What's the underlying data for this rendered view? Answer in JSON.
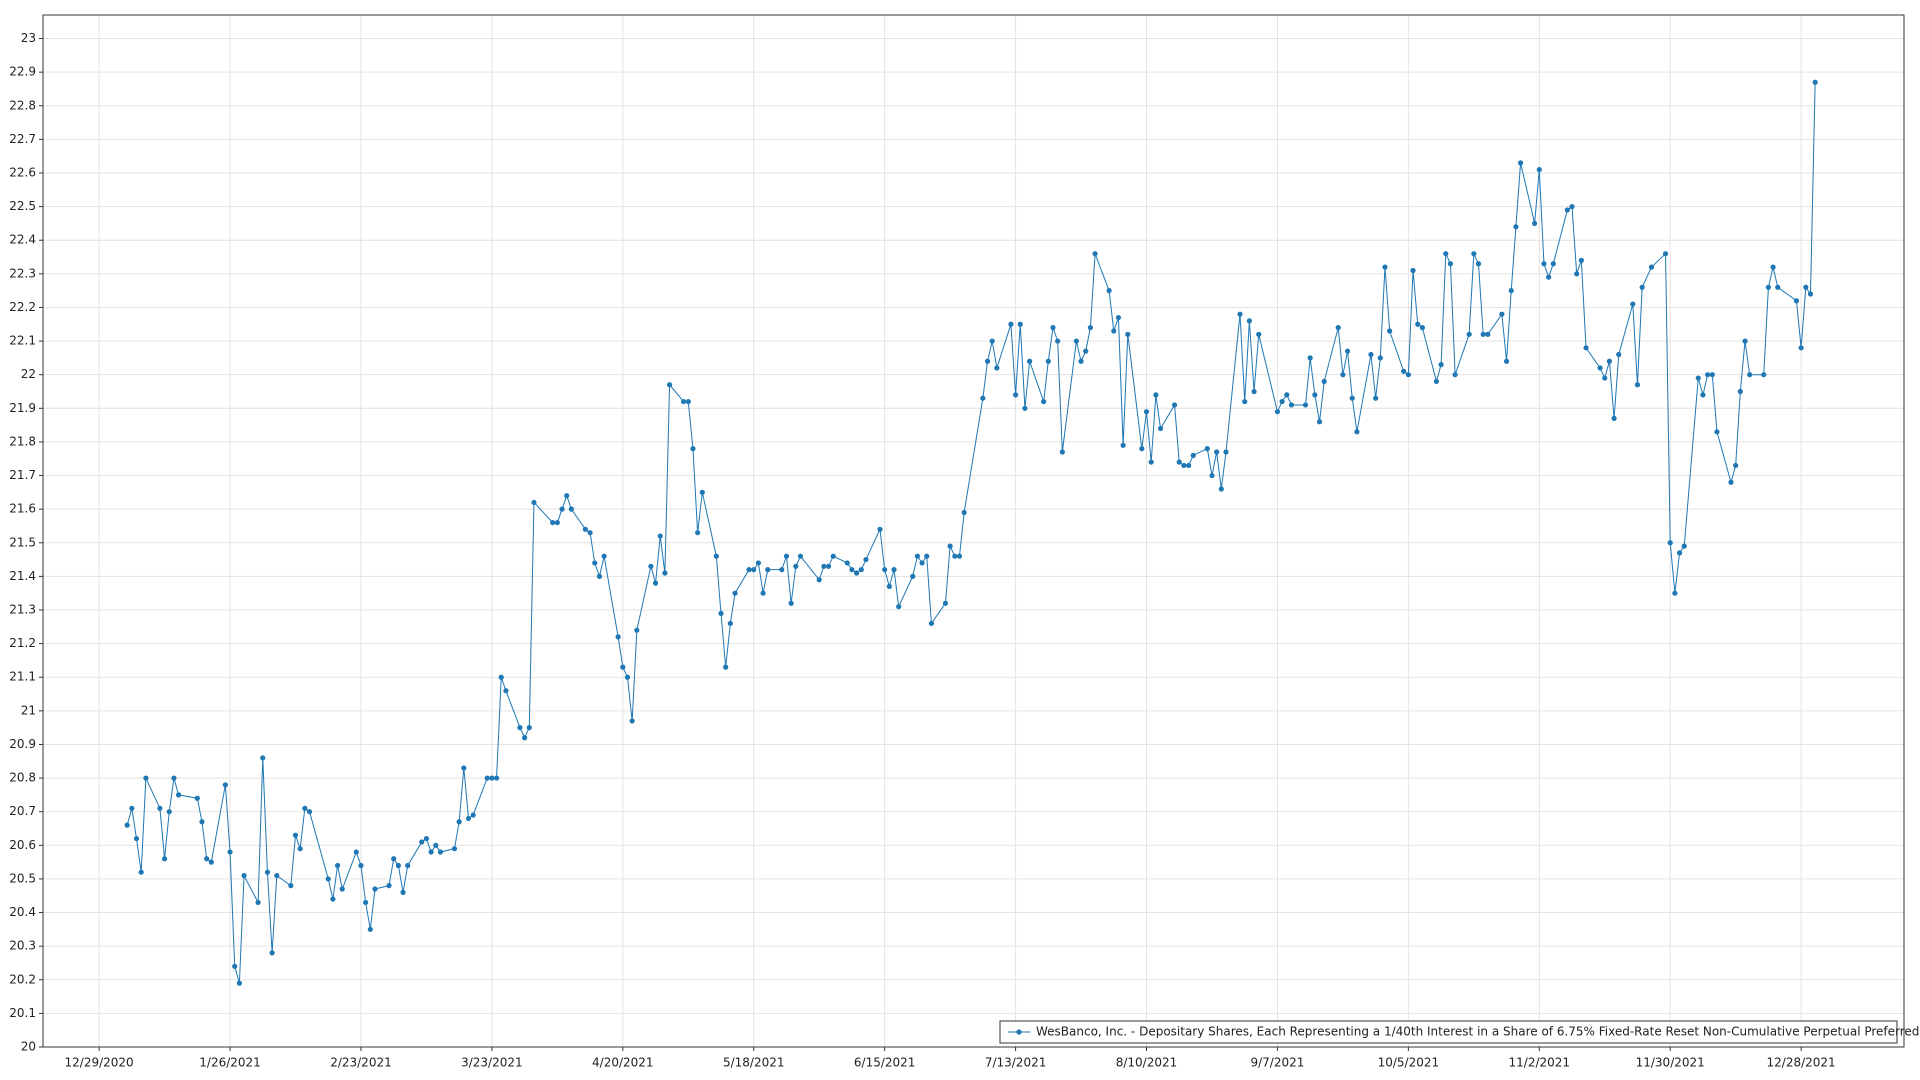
{
  "chart_data": {
    "type": "line",
    "legend": "lower right",
    "grid": true,
    "xlim": [
      "12/17/2020",
      "1/19/2022"
    ],
    "xticks": [
      "12/29/2020",
      "1/26/2021",
      "2/23/2021",
      "3/23/2021",
      "4/20/2021",
      "5/18/2021",
      "6/15/2021",
      "7/13/2021",
      "8/10/2021",
      "9/7/2021",
      "10/5/2021",
      "11/2/2021",
      "11/30/2021",
      "12/28/2021"
    ],
    "ylim": [
      20,
      23.07
    ],
    "yticks": [
      20,
      20.1,
      20.2,
      20.3,
      20.4,
      20.5,
      20.6,
      20.7,
      20.8,
      20.9,
      21,
      21.1,
      21.2,
      21.3,
      21.4,
      21.5,
      21.6,
      21.7,
      21.8,
      21.9,
      22,
      22.1,
      22.2,
      22.3,
      22.4,
      22.5,
      22.6,
      22.7,
      22.8,
      22.9,
      23
    ],
    "x": [
      "1/4/2021",
      "1/5/2021",
      "1/6/2021",
      "1/7/2021",
      "1/8/2021",
      "1/11/2021",
      "1/12/2021",
      "1/13/2021",
      "1/14/2021",
      "1/15/2021",
      "1/19/2021",
      "1/20/2021",
      "1/21/2021",
      "1/22/2021",
      "1/25/2021",
      "1/26/2021",
      "1/27/2021",
      "1/28/2021",
      "1/29/2021",
      "2/1/2021",
      "2/2/2021",
      "2/3/2021",
      "2/4/2021",
      "2/5/2021",
      "2/8/2021",
      "2/9/2021",
      "2/10/2021",
      "2/11/2021",
      "2/12/2021",
      "2/16/2021",
      "2/17/2021",
      "2/18/2021",
      "2/19/2021",
      "2/22/2021",
      "2/23/2021",
      "2/24/2021",
      "2/25/2021",
      "2/26/2021",
      "3/1/2021",
      "3/2/2021",
      "3/3/2021",
      "3/4/2021",
      "3/5/2021",
      "3/8/2021",
      "3/9/2021",
      "3/10/2021",
      "3/11/2021",
      "3/12/2021",
      "3/15/2021",
      "3/16/2021",
      "3/17/2021",
      "3/18/2021",
      "3/19/2021",
      "3/22/2021",
      "3/23/2021",
      "3/24/2021",
      "3/25/2021",
      "3/26/2021",
      "3/29/2021",
      "3/30/2021",
      "3/31/2021",
      "4/1/2021",
      "4/5/2021",
      "4/6/2021",
      "4/7/2021",
      "4/8/2021",
      "4/9/2021",
      "4/12/2021",
      "4/13/2021",
      "4/14/2021",
      "4/15/2021",
      "4/16/2021",
      "4/19/2021",
      "4/20/2021",
      "4/21/2021",
      "4/22/2021",
      "4/23/2021",
      "4/26/2021",
      "4/27/2021",
      "4/28/2021",
      "4/29/2021",
      "4/30/2021",
      "5/3/2021",
      "5/4/2021",
      "5/5/2021",
      "5/6/2021",
      "5/7/2021",
      "5/10/2021",
      "5/11/2021",
      "5/12/2021",
      "5/13/2021",
      "5/14/2021",
      "5/17/2021",
      "5/18/2021",
      "5/19/2021",
      "5/20/2021",
      "5/21/2021",
      "5/24/2021",
      "5/25/2021",
      "5/26/2021",
      "5/27/2021",
      "5/28/2021",
      "6/1/2021",
      "6/2/2021",
      "6/3/2021",
      "6/4/2021",
      "6/7/2021",
      "6/8/2021",
      "6/9/2021",
      "6/10/2021",
      "6/11/2021",
      "6/14/2021",
      "6/15/2021",
      "6/16/2021",
      "6/17/2021",
      "6/18/2021",
      "6/21/2021",
      "6/22/2021",
      "6/23/2021",
      "6/24/2021",
      "6/25/2021",
      "6/28/2021",
      "6/29/2021",
      "6/30/2021",
      "7/1/2021",
      "7/2/2021",
      "7/6/2021",
      "7/7/2021",
      "7/8/2021",
      "7/9/2021",
      "7/12/2021",
      "7/13/2021",
      "7/14/2021",
      "7/15/2021",
      "7/16/2021",
      "7/19/2021",
      "7/20/2021",
      "7/21/2021",
      "7/22/2021",
      "7/23/2021",
      "7/26/2021",
      "7/27/2021",
      "7/28/2021",
      "7/29/2021",
      "7/30/2021",
      "8/2/2021",
      "8/3/2021",
      "8/4/2021",
      "8/5/2021",
      "8/6/2021",
      "8/9/2021",
      "8/10/2021",
      "8/11/2021",
      "8/12/2021",
      "8/13/2021",
      "8/16/2021",
      "8/17/2021",
      "8/18/2021",
      "8/19/2021",
      "8/20/2021",
      "8/23/2021",
      "8/24/2021",
      "8/25/2021",
      "8/26/2021",
      "8/27/2021",
      "8/30/2021",
      "8/31/2021",
      "9/1/2021",
      "9/2/2021",
      "9/3/2021",
      "9/7/2021",
      "9/8/2021",
      "9/9/2021",
      "9/10/2021",
      "9/13/2021",
      "9/14/2021",
      "9/15/2021",
      "9/16/2021",
      "9/17/2021",
      "9/20/2021",
      "9/21/2021",
      "9/22/2021",
      "9/23/2021",
      "9/24/2021",
      "9/27/2021",
      "9/28/2021",
      "9/29/2021",
      "9/30/2021",
      "10/1/2021",
      "10/4/2021",
      "10/5/2021",
      "10/6/2021",
      "10/7/2021",
      "10/8/2021",
      "10/11/2021",
      "10/12/2021",
      "10/13/2021",
      "10/14/2021",
      "10/15/2021",
      "10/18/2021",
      "10/19/2021",
      "10/20/2021",
      "10/21/2021",
      "10/22/2021",
      "10/25/2021",
      "10/26/2021",
      "10/27/2021",
      "10/28/2021",
      "10/29/2021",
      "11/1/2021",
      "11/2/2021",
      "11/3/2021",
      "11/4/2021",
      "11/5/2021",
      "11/8/2021",
      "11/9/2021",
      "11/10/2021",
      "11/11/2021",
      "11/12/2021",
      "11/15/2021",
      "11/16/2021",
      "11/17/2021",
      "11/18/2021",
      "11/19/2021",
      "11/22/2021",
      "11/23/2021",
      "11/24/2021",
      "11/26/2021",
      "11/29/2021",
      "11/30/2021",
      "12/1/2021",
      "12/2/2021",
      "12/3/2021",
      "12/6/2021",
      "12/7/2021",
      "12/8/2021",
      "12/9/2021",
      "12/10/2021",
      "12/13/2021",
      "12/14/2021",
      "12/15/2021",
      "12/16/2021",
      "12/17/2021",
      "12/20/2021",
      "12/21/2021",
      "12/22/2021",
      "12/23/2021",
      "12/27/2021",
      "12/28/2021",
      "12/29/2021",
      "12/30/2021",
      "12/31/2021"
    ],
    "series": [
      {
        "name": "WesBanco, Inc. - Depositary Shares, Each Representing a 1/40th Interest in a Share of 6.75% Fixed-Rate Reset Non-Cumulative Perpetual Preferred Stock, Series A",
        "color": "#1f77b4",
        "values": [
          20.66,
          20.71,
          20.62,
          20.52,
          20.8,
          20.71,
          20.56,
          20.7,
          20.8,
          20.75,
          20.74,
          20.67,
          20.56,
          20.55,
          20.78,
          20.58,
          20.24,
          20.19,
          20.51,
          20.43,
          20.86,
          20.52,
          20.28,
          20.51,
          20.48,
          20.63,
          20.59,
          20.71,
          20.7,
          20.5,
          20.44,
          20.54,
          20.47,
          20.58,
          20.54,
          20.43,
          20.35,
          20.47,
          20.48,
          20.56,
          20.54,
          20.46,
          20.54,
          20.61,
          20.62,
          20.58,
          20.6,
          20.58,
          20.59,
          20.67,
          20.83,
          20.68,
          20.69,
          20.8,
          20.8,
          20.8,
          21.1,
          21.06,
          20.95,
          20.92,
          20.95,
          21.62,
          21.56,
          21.56,
          21.6,
          21.64,
          21.6,
          21.54,
          21.53,
          21.44,
          21.4,
          21.46,
          21.22,
          21.13,
          21.1,
          20.97,
          21.24,
          21.43,
          21.38,
          21.52,
          21.41,
          21.97,
          21.92,
          21.92,
          21.78,
          21.53,
          21.65,
          21.46,
          21.29,
          21.13,
          21.26,
          21.35,
          21.42,
          21.42,
          21.44,
          21.35,
          21.42,
          21.42,
          21.46,
          21.32,
          21.43,
          21.46,
          21.39,
          21.43,
          21.43,
          21.46,
          21.44,
          21.42,
          21.41,
          21.42,
          21.45,
          21.54,
          21.42,
          21.37,
          21.42,
          21.31,
          21.4,
          21.46,
          21.44,
          21.46,
          21.26,
          21.32,
          21.49,
          21.46,
          21.46,
          21.59,
          21.93,
          22.04,
          22.1,
          22.02,
          22.15,
          21.94,
          22.15,
          21.9,
          22.04,
          21.92,
          22.04,
          22.14,
          22.1,
          21.77,
          22.1,
          22.04,
          22.07,
          22.14,
          22.36,
          22.25,
          22.13,
          22.17,
          21.79,
          22.12,
          21.78,
          21.89,
          21.74,
          21.94,
          21.84,
          21.91,
          21.74,
          21.73,
          21.73,
          21.76,
          21.78,
          21.7,
          21.77,
          21.66,
          21.77,
          22.18,
          21.92,
          22.16,
          21.95,
          22.12,
          21.89,
          21.92,
          21.94,
          21.91,
          21.91,
          22.05,
          21.94,
          21.86,
          21.98,
          22.14,
          22,
          22.07,
          21.93,
          21.83,
          22.06,
          21.93,
          22.05,
          22.32,
          22.13,
          22.01,
          22,
          22.31,
          22.15,
          22.14,
          21.98,
          22.03,
          22.36,
          22.33,
          22,
          22.12,
          22.36,
          22.33,
          22.12,
          22.12,
          22.18,
          22.04,
          22.25,
          22.44,
          22.63,
          22.45,
          22.61,
          22.33,
          22.29,
          22.33,
          22.49,
          22.5,
          22.3,
          22.34,
          22.08,
          22.02,
          21.99,
          22.04,
          21.87,
          22.06,
          22.21,
          21.97,
          22.26,
          22.32,
          22.36,
          21.5,
          21.35,
          21.47,
          21.49,
          21.99,
          21.94,
          22,
          22,
          21.83,
          21.68,
          21.73,
          21.95,
          22.1,
          22,
          22,
          22.26,
          22.32,
          22.26,
          22.22,
          22.08,
          22.26,
          22.24,
          22.87
        ]
      }
    ]
  }
}
